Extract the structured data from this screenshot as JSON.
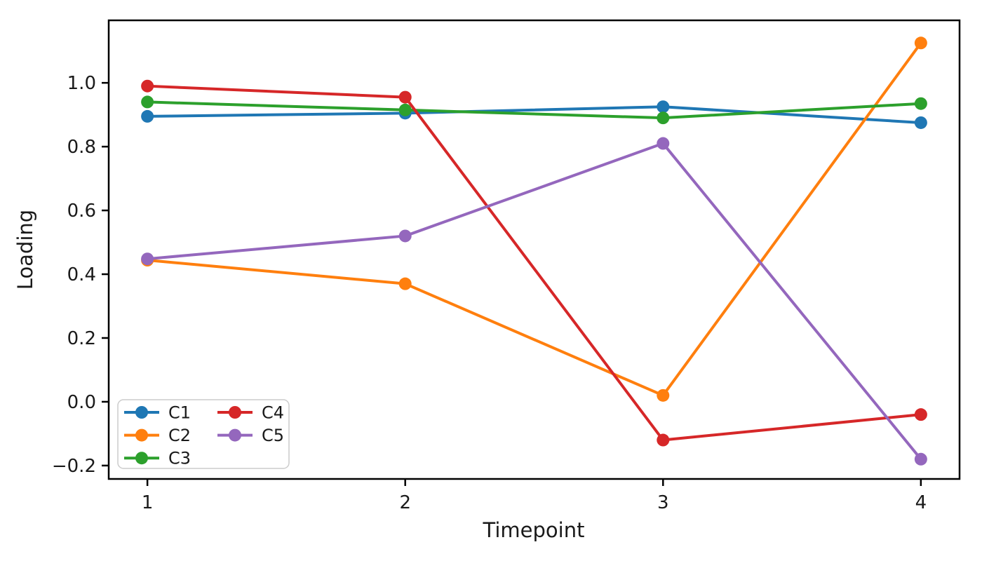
{
  "chart_data": {
    "type": "line",
    "title": "",
    "xlabel": "Timepoint",
    "ylabel": "Loading",
    "x": [
      1,
      2,
      3,
      4
    ],
    "series": [
      {
        "name": "C1",
        "color": "#1f77b4",
        "values": [
          0.895,
          0.905,
          0.925,
          0.875
        ]
      },
      {
        "name": "C2",
        "color": "#ff7f0e",
        "values": [
          0.444,
          0.37,
          0.02,
          1.125
        ]
      },
      {
        "name": "C3",
        "color": "#2ca02c",
        "values": [
          0.94,
          0.915,
          0.89,
          0.935
        ]
      },
      {
        "name": "C4",
        "color": "#d62728",
        "values": [
          0.99,
          0.955,
          -0.12,
          -0.04
        ]
      },
      {
        "name": "C5",
        "color": "#9467bd",
        "values": [
          0.448,
          0.52,
          0.81,
          -0.18
        ]
      }
    ],
    "xlim": [
      0.85,
      4.15
    ],
    "ylim": [
      -0.242,
      1.196
    ],
    "x_ticks": [
      1,
      2,
      3,
      4
    ],
    "x_tick_labels": [
      "1",
      "2",
      "3",
      "4"
    ],
    "y_ticks": [
      -0.2,
      0.0,
      0.2,
      0.4,
      0.6,
      0.8,
      1.0
    ],
    "y_tick_labels": [
      "−0.2",
      "0.0",
      "0.2",
      "0.4",
      "0.6",
      "0.8",
      "1.0"
    ],
    "grid": false,
    "legend": {
      "position": "lower left",
      "columns": 2,
      "entries": [
        "C1",
        "C2",
        "C3",
        "C4",
        "C5"
      ]
    },
    "style": {
      "line_width": 4,
      "marker_radius": 9,
      "spine_color": "#000000",
      "legend_border_color": "#cccccc",
      "legend_fill": "#ffffff"
    }
  }
}
